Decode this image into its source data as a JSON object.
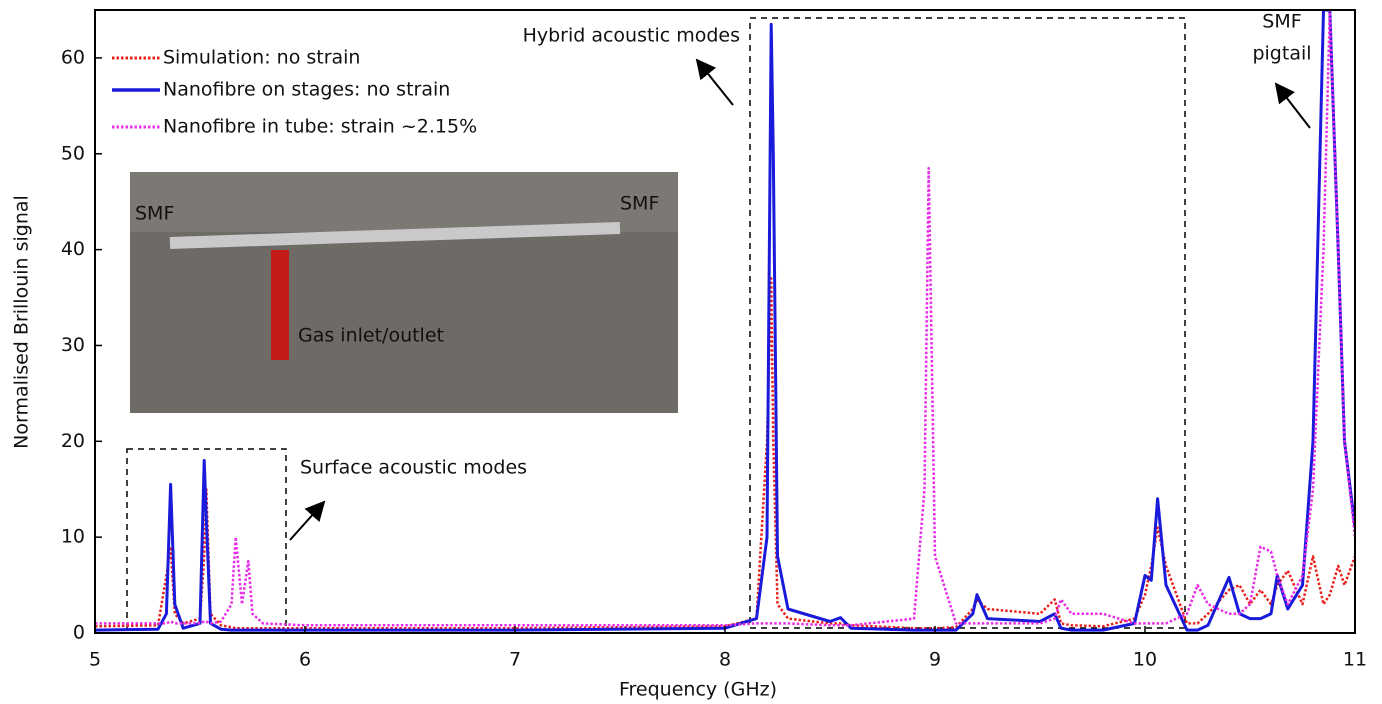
{
  "chart_data": {
    "type": "line",
    "x_label": "Frequency (GHz)",
    "y_label": "Normalised Brillouin signal",
    "xlim": [
      5,
      11
    ],
    "ylim": [
      0,
      65
    ],
    "xticks": [
      5,
      6,
      7,
      8,
      9,
      10,
      11
    ],
    "yticks": [
      0,
      10,
      20,
      30,
      40,
      50,
      60
    ],
    "legend": "upper left",
    "x": [
      5,
      5.3,
      5.34,
      5.36,
      5.38,
      5.42,
      5.5,
      5.52,
      5.53,
      5.55,
      5.6,
      5.65,
      5.67,
      5.7,
      5.73,
      5.75,
      5.8,
      6,
      7,
      8,
      8.15,
      8.2,
      8.22,
      8.23,
      8.25,
      8.3,
      8.5,
      8.55,
      8.6,
      8.9,
      8.95,
      8.97,
      9.0,
      9.1,
      9.18,
      9.2,
      9.25,
      9.5,
      9.57,
      9.6,
      9.65,
      9.8,
      9.95,
      10.0,
      10.03,
      10.06,
      10.1,
      10.2,
      10.25,
      10.3,
      10.4,
      10.45,
      10.5,
      10.55,
      10.6,
      10.63,
      10.68,
      10.75,
      10.8,
      10.85,
      10.88,
      10.92,
      10.95,
      11
    ],
    "series": [
      {
        "name": "Simulation: no strain",
        "color": "#e8221c",
        "linestyle": "dotted",
        "values": [
          0.7,
          0.8,
          6,
          9,
          2,
          1,
          1.5,
          8,
          15,
          2,
          0.8,
          0.6,
          0.5,
          0.5,
          0.5,
          0.5,
          0.5,
          0.5,
          0.5,
          0.7,
          1.5,
          20,
          37,
          20,
          3,
          1.5,
          1,
          1,
          0.8,
          0.5,
          0.5,
          0.5,
          0.5,
          0.6,
          2.5,
          3.5,
          2.5,
          2,
          3.5,
          1,
          0.8,
          0.7,
          1.5,
          4,
          7,
          11,
          7,
          1,
          1,
          2,
          4.5,
          5,
          3,
          4.5,
          3,
          5,
          6.5,
          3,
          8,
          3,
          4,
          7,
          5,
          8
        ]
      },
      {
        "name": "Nanofibre on stages: no strain",
        "color": "#1a1adb",
        "linestyle": "solid",
        "values": [
          0.3,
          0.4,
          2,
          15.5,
          3,
          0.5,
          1,
          18,
          12,
          1,
          0.4,
          0.3,
          0.3,
          0.3,
          0.3,
          0.3,
          0.3,
          0.3,
          0.3,
          0.5,
          1.5,
          10,
          63.5,
          50,
          8,
          2.5,
          1.2,
          1.6,
          0.5,
          0.3,
          0.3,
          0.3,
          0.3,
          0.3,
          2,
          4,
          1.5,
          1.2,
          2,
          0.5,
          0.3,
          0.3,
          1,
          6,
          5.5,
          14,
          5,
          0.3,
          0.3,
          0.8,
          5.8,
          2,
          1.5,
          1.5,
          2,
          6,
          2.5,
          5,
          20,
          65,
          65,
          40,
          20,
          11
        ]
      },
      {
        "name": "Nanofibre in tube: strain ~2.15%",
        "color": "#e82ce8",
        "linestyle": "dotted",
        "values": [
          1,
          1,
          1,
          1.2,
          1,
          1,
          1,
          1.2,
          1.2,
          1,
          1.2,
          3,
          10,
          3,
          7.5,
          2,
          1,
          0.8,
          0.8,
          0.8,
          1,
          1,
          1,
          1,
          1,
          1,
          0.8,
          0.8,
          0.8,
          1.5,
          15,
          48.5,
          8,
          1,
          1,
          1,
          1,
          1,
          1.5,
          3.5,
          2,
          2,
          1,
          1,
          1,
          1,
          1,
          2,
          5,
          3,
          2,
          2,
          3,
          9,
          8.5,
          6,
          3,
          6,
          15,
          40,
          65,
          40,
          20,
          10
        ]
      }
    ],
    "annotations": [
      "Hybrid acoustic modes",
      "Surface acoustic modes",
      "SMF",
      "pigtail"
    ],
    "inset_labels": [
      "SMF",
      "SMF",
      "Gas inlet/outlet"
    ]
  }
}
